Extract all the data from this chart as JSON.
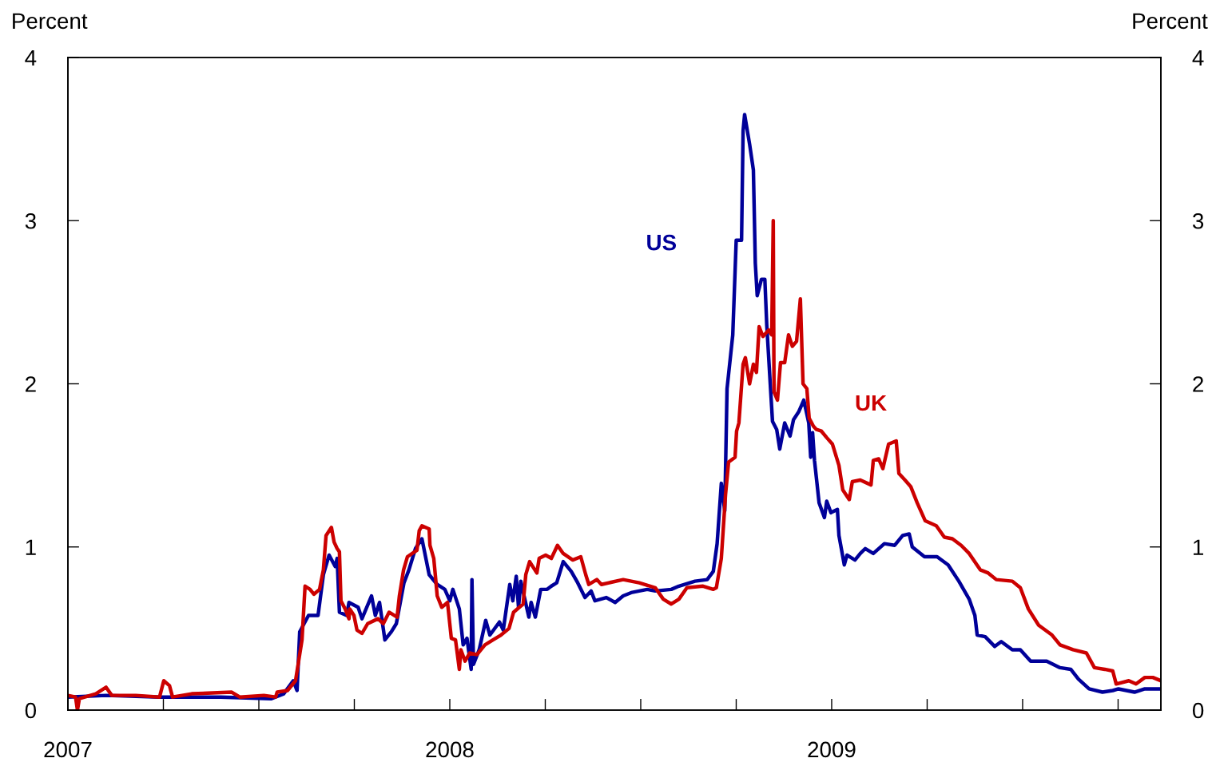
{
  "chart_data": {
    "type": "line",
    "ylabel": "Percent",
    "y2label": "Percent",
    "xlim": [
      2007,
      2009.862
    ],
    "xticks": [
      2007,
      {
        "value": 2007.25,
        "label": null
      },
      {
        "value": 2007.5,
        "label": null
      },
      {
        "value": 2007.75,
        "label": null
      },
      2008,
      {
        "value": 2008.25,
        "label": null
      },
      {
        "value": 2008.5,
        "label": null
      },
      {
        "value": 2008.75,
        "label": null
      },
      2009,
      {
        "value": 2009.25,
        "label": null
      },
      {
        "value": 2009.5,
        "label": null
      },
      {
        "value": 2009.75,
        "label": null
      }
    ],
    "ylim": [
      0,
      4
    ],
    "yticks": [
      0,
      1,
      2,
      3,
      4
    ],
    "y2lim": [
      0,
      4
    ],
    "y2ticks": [
      0,
      1,
      2,
      3,
      4
    ],
    "grid": false,
    "legend": false,
    "marker": "none",
    "line_style": "solid",
    "series": [
      {
        "name": "US",
        "color": "#000099",
        "x": [
          2007.0,
          2007.1,
          2007.24,
          2007.4,
          2007.533,
          2007.565,
          2007.59,
          2007.6,
          2007.607,
          2007.63,
          2007.655,
          2007.669,
          2007.684,
          2007.7,
          2007.705,
          2007.711,
          2007.73,
          2007.736,
          2007.76,
          2007.77,
          2007.795,
          2007.805,
          2007.816,
          2007.83,
          2007.847,
          2007.86,
          2007.88,
          2007.893,
          2007.91,
          2007.927,
          2007.946,
          2007.967,
          2007.987,
          2008.0,
          2008.008,
          2008.025,
          2008.035,
          2008.045,
          2008.056,
          2008.058,
          2008.062,
          2008.077,
          2008.094,
          2008.105,
          2008.13,
          2008.14,
          2008.157,
          2008.165,
          2008.174,
          2008.18,
          2008.186,
          2008.207,
          2008.213,
          2008.224,
          2008.238,
          2008.255,
          2008.266,
          2008.28,
          2008.297,
          2008.318,
          2008.335,
          2008.354,
          2008.37,
          2008.38,
          2008.41,
          2008.433,
          2008.454,
          2008.475,
          2008.496,
          2008.517,
          2008.538,
          2008.58,
          2008.6,
          2008.642,
          2008.674,
          2008.69,
          2008.7,
          2008.711,
          2008.72,
          2008.726,
          2008.741,
          2008.75,
          2008.764,
          2008.768,
          2008.772,
          2008.785,
          2008.795,
          2008.8,
          2008.805,
          2008.816,
          2008.825,
          2008.83,
          2008.845,
          2008.856,
          2008.864,
          2008.877,
          2008.891,
          2008.9,
          2008.914,
          2008.927,
          2008.94,
          2008.945,
          2008.95,
          2008.955,
          2008.962,
          2008.967,
          2008.981,
          2008.987,
          2008.998,
          2009.015,
          2009.019,
          2009.033,
          2009.04,
          2009.061,
          2009.075,
          2009.088,
          2009.109,
          2009.138,
          2009.165,
          2009.186,
          2009.203,
          2009.211,
          2009.243,
          2009.276,
          2009.305,
          2009.333,
          2009.36,
          2009.375,
          2009.381,
          2009.402,
          2009.427,
          2009.444,
          2009.473,
          2009.494,
          2009.521,
          2009.563,
          2009.598,
          2009.626,
          2009.646,
          2009.674,
          2009.709,
          2009.736,
          2009.751,
          2009.793,
          2009.82,
          2009.862
        ],
        "values": [
          0.08,
          0.09,
          0.08,
          0.08,
          0.07,
          0.1,
          0.18,
          0.12,
          0.48,
          0.58,
          0.58,
          0.83,
          0.95,
          0.88,
          0.93,
          0.6,
          0.58,
          0.66,
          0.63,
          0.56,
          0.7,
          0.58,
          0.66,
          0.43,
          0.48,
          0.53,
          0.78,
          0.86,
          0.99,
          1.05,
          0.83,
          0.77,
          0.74,
          0.67,
          0.74,
          0.62,
          0.4,
          0.44,
          0.25,
          0.8,
          0.28,
          0.37,
          0.55,
          0.46,
          0.54,
          0.49,
          0.77,
          0.67,
          0.82,
          0.63,
          0.79,
          0.57,
          0.66,
          0.57,
          0.74,
          0.74,
          0.76,
          0.78,
          0.91,
          0.85,
          0.78,
          0.69,
          0.73,
          0.67,
          0.69,
          0.66,
          0.7,
          0.72,
          0.73,
          0.74,
          0.73,
          0.74,
          0.76,
          0.79,
          0.8,
          0.85,
          1.02,
          1.39,
          1.22,
          1.97,
          2.3,
          2.88,
          2.88,
          3.55,
          3.65,
          3.47,
          3.31,
          2.74,
          2.54,
          2.64,
          2.64,
          2.36,
          1.77,
          1.72,
          1.6,
          1.76,
          1.68,
          1.78,
          1.83,
          1.9,
          1.76,
          1.55,
          1.7,
          1.53,
          1.38,
          1.27,
          1.18,
          1.28,
          1.21,
          1.23,
          1.07,
          0.89,
          0.95,
          0.92,
          0.96,
          0.99,
          0.96,
          1.02,
          1.01,
          1.07,
          1.08,
          1.0,
          0.94,
          0.94,
          0.89,
          0.79,
          0.68,
          0.58,
          0.46,
          0.45,
          0.39,
          0.42,
          0.37,
          0.37,
          0.3,
          0.3,
          0.26,
          0.25,
          0.19,
          0.13,
          0.11,
          0.12,
          0.13,
          0.11,
          0.13,
          0.13
        ]
      },
      {
        "name": "UK",
        "color": "#cc0000",
        "x": [
          2007.0,
          2007.02,
          2007.025,
          2007.03,
          2007.073,
          2007.1,
          2007.115,
          2007.178,
          2007.24,
          2007.251,
          2007.266,
          2007.274,
          2007.324,
          2007.429,
          2007.45,
          2007.513,
          2007.544,
          2007.548,
          2007.575,
          2007.596,
          2007.613,
          2007.621,
          2007.634,
          2007.644,
          2007.659,
          2007.663,
          2007.669,
          2007.676,
          2007.69,
          2007.697,
          2007.705,
          2007.711,
          2007.715,
          2007.726,
          2007.736,
          2007.738,
          2007.749,
          2007.757,
          2007.77,
          2007.785,
          2007.812,
          2007.826,
          2007.841,
          2007.862,
          2007.868,
          2007.879,
          2007.889,
          2007.914,
          2007.92,
          2007.927,
          2007.946,
          2007.948,
          2007.958,
          2007.962,
          2007.967,
          2007.979,
          2007.994,
          2008.004,
          2008.015,
          2008.025,
          2008.029,
          2008.04,
          2008.052,
          2008.071,
          2008.092,
          2008.113,
          2008.134,
          2008.155,
          2008.167,
          2008.192,
          2008.199,
          2008.209,
          2008.228,
          2008.234,
          2008.251,
          2008.266,
          2008.282,
          2008.297,
          2008.322,
          2008.343,
          2008.356,
          2008.364,
          2008.385,
          2008.397,
          2008.454,
          2008.496,
          2008.538,
          2008.559,
          2008.58,
          2008.6,
          2008.621,
          2008.663,
          2008.69,
          2008.698,
          2008.711,
          2008.722,
          2008.73,
          2008.747,
          2008.751,
          2008.757,
          2008.768,
          2008.774,
          2008.785,
          2008.795,
          2008.803,
          2008.81,
          2008.82,
          2008.835,
          2008.843,
          2008.847,
          2008.849,
          2008.858,
          2008.866,
          2008.877,
          2008.887,
          2008.897,
          2008.908,
          2008.918,
          2008.925,
          2008.935,
          2008.941,
          2008.952,
          2008.96,
          2008.973,
          2008.987,
          2009.002,
          2009.019,
          2009.029,
          2009.046,
          2009.054,
          2009.075,
          2009.103,
          2009.109,
          2009.123,
          2009.134,
          2009.149,
          2009.169,
          2009.176,
          2009.192,
          2009.207,
          2009.224,
          2009.245,
          2009.274,
          2009.295,
          2009.316,
          2009.339,
          2009.36,
          2009.389,
          2009.41,
          2009.431,
          2009.473,
          2009.494,
          2009.515,
          2009.542,
          2009.577,
          2009.598,
          2009.632,
          2009.667,
          2009.688,
          2009.715,
          2009.736,
          2009.745,
          2009.778,
          2009.797,
          2009.82,
          2009.841,
          2009.862
        ],
        "values": [
          0.09,
          0.08,
          0.0,
          0.07,
          0.1,
          0.14,
          0.09,
          0.09,
          0.08,
          0.18,
          0.15,
          0.08,
          0.1,
          0.11,
          0.08,
          0.09,
          0.08,
          0.11,
          0.12,
          0.18,
          0.43,
          0.76,
          0.74,
          0.71,
          0.74,
          0.79,
          0.86,
          1.07,
          1.12,
          1.03,
          0.99,
          0.97,
          0.67,
          0.62,
          0.56,
          0.62,
          0.58,
          0.49,
          0.47,
          0.53,
          0.56,
          0.53,
          0.6,
          0.57,
          0.7,
          0.86,
          0.94,
          0.98,
          1.1,
          1.13,
          1.11,
          1.01,
          0.93,
          0.83,
          0.7,
          0.63,
          0.66,
          0.44,
          0.43,
          0.25,
          0.37,
          0.3,
          0.35,
          0.34,
          0.4,
          0.43,
          0.46,
          0.5,
          0.6,
          0.65,
          0.83,
          0.91,
          0.84,
          0.93,
          0.95,
          0.93,
          1.01,
          0.96,
          0.92,
          0.94,
          0.83,
          0.77,
          0.8,
          0.77,
          0.8,
          0.78,
          0.75,
          0.68,
          0.65,
          0.68,
          0.75,
          0.76,
          0.74,
          0.75,
          0.93,
          1.32,
          1.52,
          1.55,
          1.71,
          1.76,
          2.12,
          2.16,
          2.0,
          2.12,
          2.07,
          2.35,
          2.29,
          2.33,
          2.3,
          3.0,
          1.95,
          1.9,
          2.13,
          2.13,
          2.3,
          2.23,
          2.26,
          2.52,
          2.0,
          1.97,
          1.79,
          1.74,
          1.72,
          1.71,
          1.67,
          1.63,
          1.5,
          1.35,
          1.29,
          1.4,
          1.41,
          1.38,
          1.53,
          1.54,
          1.48,
          1.63,
          1.65,
          1.45,
          1.41,
          1.37,
          1.27,
          1.16,
          1.13,
          1.06,
          1.05,
          1.01,
          0.96,
          0.86,
          0.84,
          0.8,
          0.79,
          0.75,
          0.62,
          0.52,
          0.46,
          0.4,
          0.37,
          0.35,
          0.26,
          0.25,
          0.24,
          0.16,
          0.18,
          0.16,
          0.2,
          0.2,
          0.18
        ]
      }
    ]
  }
}
